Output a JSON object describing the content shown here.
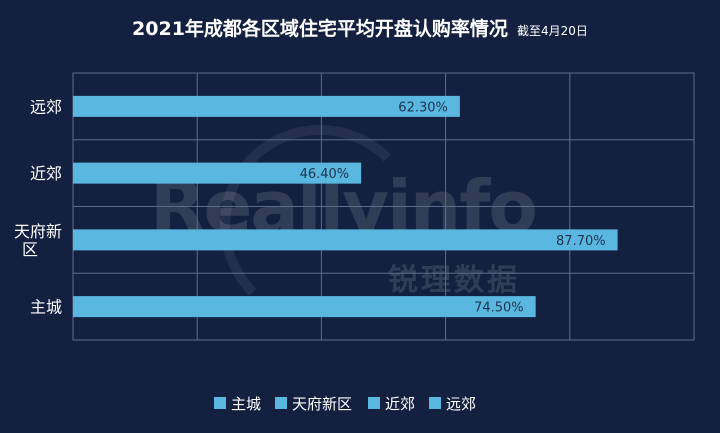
{
  "title": "2021年成都各区域住宅平均开盘认购率情况",
  "subtitle": "截至4月20日",
  "watermark": {
    "text": "Reallyinfo",
    "text_cn": "锐理数据"
  },
  "colors": {
    "background": "#13203f",
    "bar": "#5ab8e0",
    "grid": "#5f6d8c",
    "axis_text": "#ffffff",
    "label_text": "#1f3350"
  },
  "chart_data": {
    "type": "bar",
    "orientation": "horizontal",
    "categories": [
      "远郊",
      "近郊",
      "天府新区",
      "主城"
    ],
    "values": [
      62.3,
      46.4,
      87.7,
      74.5
    ],
    "value_labels": [
      "62.30%",
      "46.40%",
      "87.70%",
      "74.50%"
    ],
    "xlim": [
      0,
      100
    ],
    "grid": true,
    "legend": {
      "position": "bottom",
      "entries": [
        "主城",
        "天府新区",
        "近郊",
        "远郊"
      ]
    }
  }
}
